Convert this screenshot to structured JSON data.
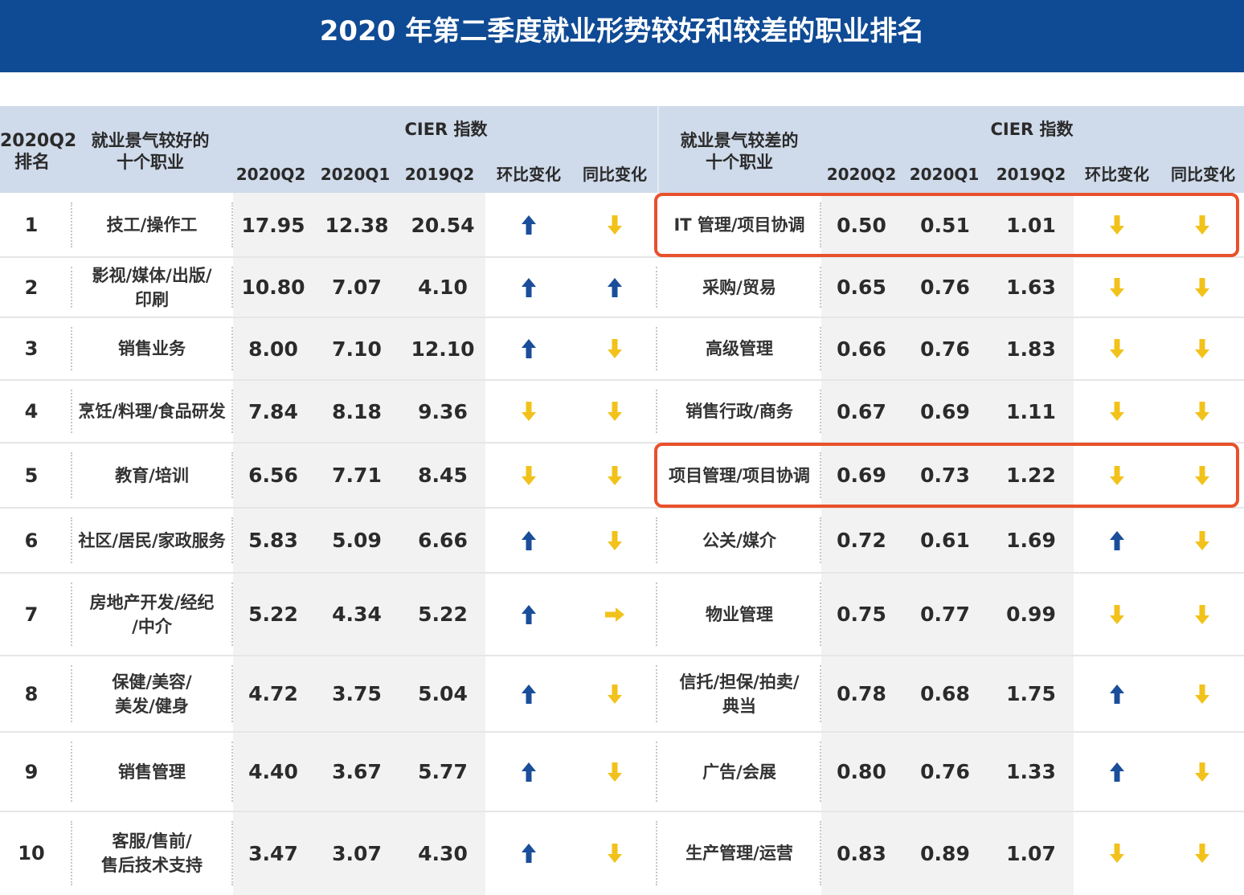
{
  "title": "2020 年第二季度就业形势较好和较差的职业排名",
  "colors": {
    "title_bg": "#0f4a94",
    "header_bg": "#cfdaea",
    "arrow_up": "#1a4e9a",
    "arrow_down": "#f2c21b",
    "highlight": "#e8512b"
  },
  "header": {
    "rank": "2020Q2\n排名",
    "good_occ": "就业景气较好的\n十个职业",
    "bad_occ": "就业景气较差的\n十个职业",
    "cier_left": "CIER 指数",
    "cier_right": "CIER 指数",
    "columns": [
      "2020Q2",
      "2020Q1",
      "2019Q2",
      "环比变化",
      "同比变化"
    ]
  },
  "chart_data": {
    "type": "table",
    "title": "2020 年第二季度就业形势较好和较差的职业排名",
    "rows": [
      {
        "rank": "1",
        "good": "技工/操作工",
        "g": [
          "17.95",
          "12.38",
          "20.54"
        ],
        "g_qoq": "up",
        "g_yoy": "down",
        "bad": "IT 管理/项目协调",
        "b": [
          "0.50",
          "0.51",
          "1.01"
        ],
        "b_qoq": "down",
        "b_yoy": "down",
        "highlight": true
      },
      {
        "rank": "2",
        "good": "影视/媒体/出版/\n印刷",
        "g": [
          "10.80",
          "7.07",
          "4.10"
        ],
        "g_qoq": "up",
        "g_yoy": "up",
        "bad": "采购/贸易",
        "b": [
          "0.65",
          "0.76",
          "1.63"
        ],
        "b_qoq": "down",
        "b_yoy": "down",
        "highlight": false
      },
      {
        "rank": "3",
        "good": "销售业务",
        "g": [
          "8.00",
          "7.10",
          "12.10"
        ],
        "g_qoq": "up",
        "g_yoy": "down",
        "bad": "高级管理",
        "b": [
          "0.66",
          "0.76",
          "1.83"
        ],
        "b_qoq": "down",
        "b_yoy": "down",
        "highlight": false
      },
      {
        "rank": "4",
        "good": "烹饪/料理/食品研发",
        "g": [
          "7.84",
          "8.18",
          "9.36"
        ],
        "g_qoq": "down",
        "g_yoy": "down",
        "bad": "销售行政/商务",
        "b": [
          "0.67",
          "0.69",
          "1.11"
        ],
        "b_qoq": "down",
        "b_yoy": "down",
        "highlight": false
      },
      {
        "rank": "5",
        "good": "教育/培训",
        "g": [
          "6.56",
          "7.71",
          "8.45"
        ],
        "g_qoq": "down",
        "g_yoy": "down",
        "bad": "项目管理/项目协调",
        "b": [
          "0.69",
          "0.73",
          "1.22"
        ],
        "b_qoq": "down",
        "b_yoy": "down",
        "highlight": true
      },
      {
        "rank": "6",
        "good": "社区/居民/家政服务",
        "g": [
          "5.83",
          "5.09",
          "6.66"
        ],
        "g_qoq": "up",
        "g_yoy": "down",
        "bad": "公关/媒介",
        "b": [
          "0.72",
          "0.61",
          "1.69"
        ],
        "b_qoq": "up",
        "b_yoy": "down",
        "highlight": false
      },
      {
        "rank": "7",
        "good": "房地产开发/经纪\n/中介",
        "g": [
          "5.22",
          "4.34",
          "5.22"
        ],
        "g_qoq": "up",
        "g_yoy": "flat",
        "bad": "物业管理",
        "b": [
          "0.75",
          "0.77",
          "0.99"
        ],
        "b_qoq": "down",
        "b_yoy": "down",
        "highlight": false
      },
      {
        "rank": "8",
        "good": "保健/美容/\n美发/健身",
        "g": [
          "4.72",
          "3.75",
          "5.04"
        ],
        "g_qoq": "up",
        "g_yoy": "down",
        "bad": "信托/担保/拍卖/\n典当",
        "b": [
          "0.78",
          "0.68",
          "1.75"
        ],
        "b_qoq": "up",
        "b_yoy": "down",
        "highlight": false
      },
      {
        "rank": "9",
        "good": "销售管理",
        "g": [
          "4.40",
          "3.67",
          "5.77"
        ],
        "g_qoq": "up",
        "g_yoy": "down",
        "bad": "广告/会展",
        "b": [
          "0.80",
          "0.76",
          "1.33"
        ],
        "b_qoq": "up",
        "b_yoy": "down",
        "highlight": false
      },
      {
        "rank": "10",
        "good": "客服/售前/\n售后技术支持",
        "g": [
          "3.47",
          "3.07",
          "4.30"
        ],
        "g_qoq": "up",
        "g_yoy": "down",
        "bad": "生产管理/运营",
        "b": [
          "0.83",
          "0.89",
          "1.07"
        ],
        "b_qoq": "down",
        "b_yoy": "down",
        "highlight": false
      }
    ]
  }
}
